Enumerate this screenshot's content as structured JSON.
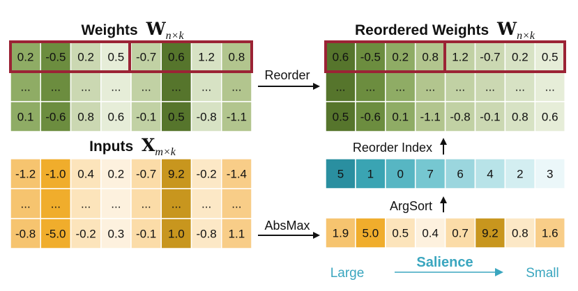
{
  "titles": {
    "weights": {
      "main": "Weights",
      "math": "W",
      "sub": "n×k"
    },
    "reordered": {
      "main": "Reordered Weights",
      "math": "W",
      "sub": "n×k"
    },
    "inputs": {
      "main": "Inputs",
      "math": "X",
      "sub": "m×k"
    }
  },
  "labels": {
    "reorder": "Reorder",
    "absmax": "AbsMax",
    "argsort": "ArgSort",
    "reorder_index": "Reorder Index",
    "salience": "Salience",
    "large": "Large",
    "small": "Small"
  },
  "weights": {
    "rows": [
      [
        "0.2",
        "-0.5",
        "0.2",
        "0.5",
        "-0.7",
        "0.6",
        "1.2",
        "0.8"
      ],
      [
        "...",
        "...",
        "...",
        "...",
        "...",
        "...",
        "...",
        "..."
      ],
      [
        "0.1",
        "-0.6",
        "0.8",
        "0.6",
        "-0.1",
        "0.5",
        "-0.8",
        "-1.1"
      ]
    ],
    "col_colors": [
      "#8fac65",
      "#6c8d3f",
      "#cbd8b2",
      "#e6edd8",
      "#c1d1a4",
      "#56752c",
      "#d7e2c4",
      "#b2c58e"
    ]
  },
  "reordered_weights": {
    "rows": [
      [
        "0.6",
        "-0.5",
        "0.2",
        "0.8",
        "1.2",
        "-0.7",
        "0.2",
        "0.5"
      ],
      [
        "...",
        "...",
        "...",
        "...",
        "...",
        "...",
        "...",
        "..."
      ],
      [
        "0.5",
        "-0.6",
        "0.1",
        "-1.1",
        "-0.8",
        "-0.1",
        "0.8",
        "0.6"
      ]
    ],
    "col_colors": [
      "#56752c",
      "#6c8d3f",
      "#8fac65",
      "#b2c58e",
      "#c1d1a4",
      "#cbd8b2",
      "#d7e2c4",
      "#e6edd8"
    ]
  },
  "inputs": {
    "rows": [
      [
        "-1.2",
        "-1.0",
        "0.4",
        "0.2",
        "-0.7",
        "9.2",
        "-0.2",
        "-1.4"
      ],
      [
        "...",
        "...",
        "...",
        "...",
        "...",
        "...",
        "...",
        "..."
      ],
      [
        "-0.8",
        "-5.0",
        "-0.2",
        "0.3",
        "-0.1",
        "1.0",
        "-0.8",
        "1.1"
      ]
    ],
    "col_colors": [
      "#f6c46f",
      "#f0ad2c",
      "#fce4bb",
      "#fdf1de",
      "#fbdca8",
      "#c8961e",
      "#fce8c6",
      "#f8cd88"
    ]
  },
  "absmax": {
    "values": [
      "1.9",
      "5.0",
      "0.5",
      "0.4",
      "0.7",
      "9.2",
      "0.8",
      "1.6"
    ],
    "colors": [
      "#f6c46f",
      "#f0ad2c",
      "#fce4bb",
      "#fdf1de",
      "#fbdca8",
      "#c8961e",
      "#fce8c6",
      "#f8cd88"
    ]
  },
  "reorder_index": {
    "values": [
      "5",
      "1",
      "0",
      "7",
      "6",
      "4",
      "2",
      "3"
    ],
    "colors": [
      "#2a8fa0",
      "#3aa4b3",
      "#57b6c3",
      "#76c7d1",
      "#9bd6de",
      "#b8e3e8",
      "#d3eef1",
      "#ebf7f9"
    ]
  },
  "highlight_color": "#9b2335",
  "arrow_color": "#111111",
  "salience_color": "#3aa6bf"
}
